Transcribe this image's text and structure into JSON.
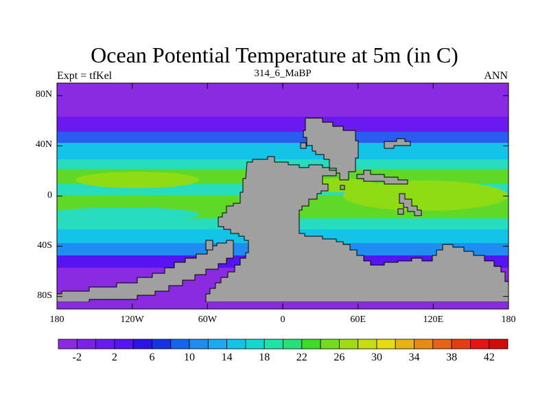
{
  "title": "Ocean Potential Temperature at 5m (in C)",
  "left_label": "Expt = tfKel",
  "center_label": "314_6_MaBP",
  "right_label": "ANN",
  "lat_ticks": [
    "80N",
    "40N",
    "0",
    "40S",
    "80S"
  ],
  "lat_values": [
    80,
    40,
    0,
    -40,
    -80
  ],
  "lon_ticks": [
    "180",
    "120W",
    "60W",
    "0",
    "60E",
    "120E",
    "180"
  ],
  "lon_values": [
    -180,
    -120,
    -60,
    0,
    60,
    120,
    180
  ],
  "lat_range": [
    -90,
    90
  ],
  "lon_range": [
    -180,
    180
  ],
  "colorbar": {
    "labels": [
      "-2",
      "2",
      "6",
      "10",
      "14",
      "18",
      "22",
      "26",
      "30",
      "34",
      "38",
      "42"
    ],
    "colors": [
      "#8a2be2",
      "#7a22e8",
      "#6a1aee",
      "#5614f2",
      "#2a14e6",
      "#1432e6",
      "#1464ee",
      "#1e8cf0",
      "#1eaaf0",
      "#14c4e8",
      "#14d8d0",
      "#1ee4a8",
      "#28e07a",
      "#3cdc28",
      "#74dc1e",
      "#a0dc14",
      "#c8dc14",
      "#e6dc14",
      "#e6b414",
      "#e68c14",
      "#e66414",
      "#e63c14",
      "#e61414",
      "#d20a0a"
    ]
  },
  "colors": {
    "land": "#a0a0a0",
    "polar": "#8a2be2",
    "subpolar": "#6a1aee",
    "cool": "#5a1cf0",
    "temperate": "#14c8e0",
    "warm": "#28dcc0",
    "tropical": "#60d828",
    "hot": "#90dc14",
    "background": "#ffffff"
  }
}
